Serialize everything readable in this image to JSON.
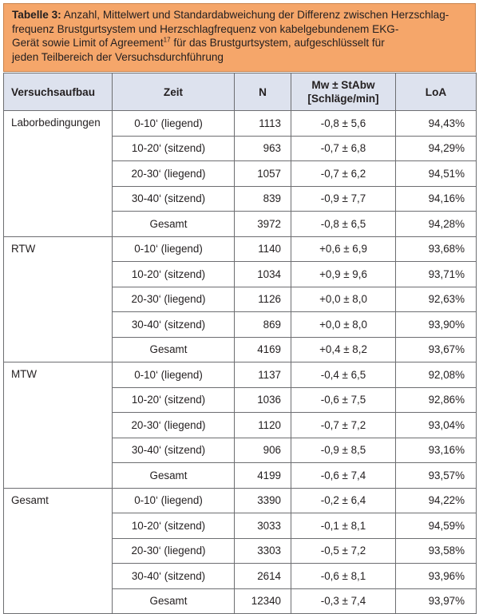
{
  "caption": {
    "label": "Tabelle 3:",
    "line1": "Anzahl, Mittelwert und Standardabweichung der Differenz zwischen Herzschlag-",
    "line2": "frequenz Brustgurtsystem und Herzschlagfrequenz von kabelgebundenem EKG-",
    "line3a": "Gerät sowie Limit of Agreement",
    "line3_sup": "17",
    "line3b": " für das Brustgurtsystem, aufgeschlüsselt für",
    "line4": "jeden Teilbereich der Versuchsdurchführung"
  },
  "table": {
    "headers": {
      "aufbau": "Versuchsaufbau",
      "zeit": "Zeit",
      "n": "N",
      "mw_line1": "Mw ± StAbw",
      "mw_line2": "[Schläge/min]",
      "loa": "LoA"
    },
    "groups": [
      {
        "name": "Laborbedingungen",
        "rows": [
          {
            "zeit": "0-10‘ (liegend)",
            "n": "1113",
            "mw": "-0,8 ± 5,6",
            "loa": "94,43%"
          },
          {
            "zeit": "10-20‘ (sitzend)",
            "n": "963",
            "mw": "-0,7 ± 6,8",
            "loa": "94,29%"
          },
          {
            "zeit": "20-30‘ (liegend)",
            "n": "1057",
            "mw": "-0,7 ± 6,2",
            "loa": "94,51%"
          },
          {
            "zeit": "30-40‘ (sitzend)",
            "n": "839",
            "mw": "-0,9 ± 7,7",
            "loa": "94,16%"
          },
          {
            "zeit": "Gesamt",
            "n": "3972",
            "mw": "-0,8 ± 6,5",
            "loa": "94,28%"
          }
        ]
      },
      {
        "name": "RTW",
        "rows": [
          {
            "zeit": "0-10‘ (liegend)",
            "n": "1140",
            "mw": "+0,6 ± 6,9",
            "loa": "93,68%"
          },
          {
            "zeit": "10-20‘ (sitzend)",
            "n": "1034",
            "mw": "+0,9 ± 9,6",
            "loa": "93,71%"
          },
          {
            "zeit": "20-30‘ (liegend)",
            "n": "1126",
            "mw": "+0,0 ± 8,0",
            "loa": "92,63%"
          },
          {
            "zeit": "30-40‘ (sitzend)",
            "n": "869",
            "mw": "+0,0 ± 8,0",
            "loa": "93,90%"
          },
          {
            "zeit": "Gesamt",
            "n": "4169",
            "mw": "+0,4 ± 8,2",
            "loa": "93,67%"
          }
        ]
      },
      {
        "name": "MTW",
        "rows": [
          {
            "zeit": "0-10‘ (liegend)",
            "n": "1137",
            "mw": "-0,4 ± 6,5",
            "loa": "92,08%"
          },
          {
            "zeit": "10-20‘ (sitzend)",
            "n": "1036",
            "mw": "-0,6 ± 7,5",
            "loa": "92,86%"
          },
          {
            "zeit": "20-30‘ (liegend)",
            "n": "1120",
            "mw": "-0,7 ± 7,2",
            "loa": "93,04%"
          },
          {
            "zeit": "30-40‘ (sitzend)",
            "n": "906",
            "mw": "-0,9 ± 8,5",
            "loa": "93,16%"
          },
          {
            "zeit": "Gesamt",
            "n": "4199",
            "mw": "-0,6 ± 7,4",
            "loa": "93,57%"
          }
        ]
      },
      {
        "name": "Gesamt",
        "rows": [
          {
            "zeit": "0-10‘ (liegend)",
            "n": "3390",
            "mw": "-0,2 ± 6,4",
            "loa": "94,22%"
          },
          {
            "zeit": "10-20‘ (sitzend)",
            "n": "3033",
            "mw": "-0,1 ± 8,1",
            "loa": "94,59%"
          },
          {
            "zeit": "20-30‘ (liegend)",
            "n": "3303",
            "mw": "-0,5 ± 7,2",
            "loa": "93,58%"
          },
          {
            "zeit": "30-40‘ (sitzend)",
            "n": "2614",
            "mw": "-0,6 ± 8,1",
            "loa": "93,96%"
          },
          {
            "zeit": "Gesamt",
            "n": "12340",
            "mw": "-0,3 ± 7,4",
            "loa": "93,97%"
          }
        ]
      }
    ]
  },
  "colors": {
    "caption_bg": "#f5a66a",
    "header_bg": "#dde2ee",
    "border": "#6d6e71"
  }
}
